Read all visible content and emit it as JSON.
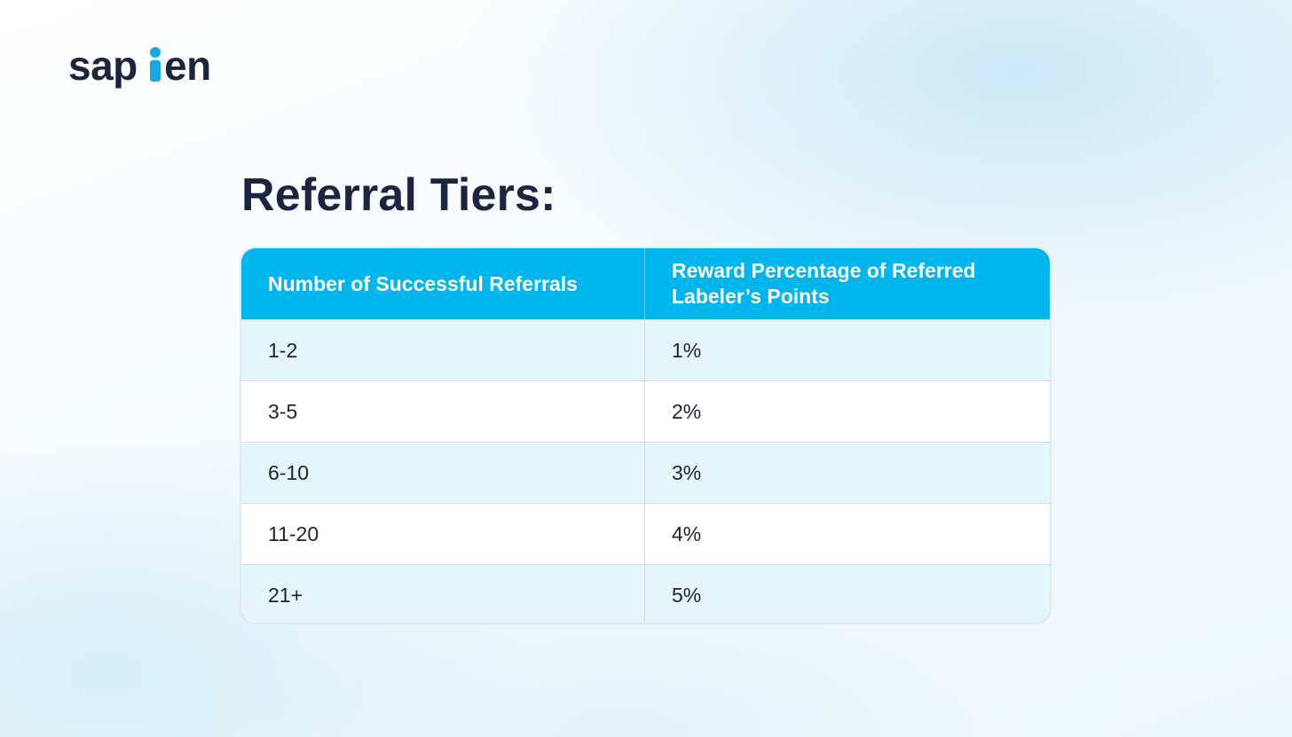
{
  "logo": {
    "text_before": "sap",
    "text_after": "en",
    "brand_dark": "#1c2540",
    "brand_accent": "#19a7e0"
  },
  "page": {
    "title": "Referral Tiers:"
  },
  "table": {
    "headers": [
      "Number of Successful Referrals",
      "Reward Percentage of Referred Labeler’s Points"
    ],
    "rows": [
      [
        "1-2",
        "1%"
      ],
      [
        "3-5",
        "2%"
      ],
      [
        "6-10",
        "3%"
      ],
      [
        "11-20",
        "4%"
      ],
      [
        "21+",
        "5%"
      ]
    ],
    "header_color": "#00b5ec",
    "shaded_row_color": "#e5f5fc"
  }
}
